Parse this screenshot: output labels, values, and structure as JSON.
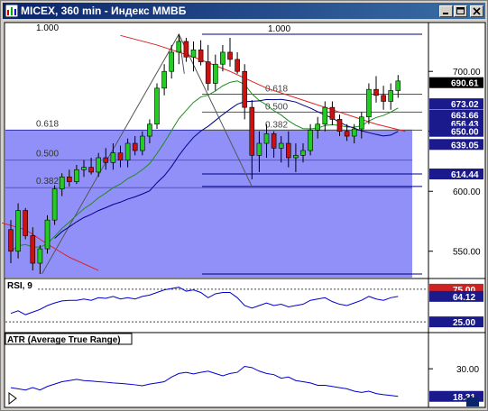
{
  "window": {
    "title": "MICEX, 360 min - Индекс ММВБ",
    "buttons": [
      "minimize",
      "maximize",
      "close"
    ]
  },
  "colors": {
    "bull": "#22cc22",
    "bear": "#cc1111",
    "ma_fast": "#1e8c1e",
    "ma_slow": "#dd2222",
    "ma_blue": "#00008b",
    "fibo_zone": "#8a8af8",
    "rsi": "#0000cc",
    "atr": "#0000cc",
    "last_price_box": "#000000",
    "level_box": "#1a1a8c"
  },
  "chart_data": [
    {
      "type": "candlestick",
      "name": "main",
      "ylim": [
        528,
        740
      ],
      "y_ticks": [
        550,
        600,
        650,
        700
      ],
      "y_tick_labels": [
        "550.00",
        "600.00",
        "650.00",
        "700.00"
      ],
      "candles": [
        [
          568,
          576,
          540,
          550
        ],
        [
          550,
          590,
          544,
          584
        ],
        [
          584,
          586,
          560,
          563
        ],
        [
          563,
          570,
          534,
          540
        ],
        [
          540,
          555,
          531,
          552
        ],
        [
          552,
          580,
          548,
          576
        ],
        [
          576,
          605,
          572,
          602
        ],
        [
          602,
          615,
          596,
          612
        ],
        [
          612,
          618,
          604,
          608
        ],
        [
          608,
          622,
          606,
          618
        ],
        [
          618,
          626,
          612,
          620
        ],
        [
          620,
          628,
          614,
          616
        ],
        [
          616,
          632,
          612,
          628
        ],
        [
          628,
          636,
          618,
          624
        ],
        [
          624,
          640,
          618,
          632
        ],
        [
          632,
          638,
          620,
          626
        ],
        [
          626,
          644,
          620,
          640
        ],
        [
          640,
          646,
          630,
          634
        ],
        [
          634,
          650,
          630,
          646
        ],
        [
          646,
          660,
          640,
          656
        ],
        [
          656,
          690,
          652,
          686
        ],
        [
          686,
          706,
          680,
          700
        ],
        [
          700,
          722,
          694,
          716
        ],
        [
          716,
          731,
          706,
          725
        ],
        [
          725,
          728,
          708,
          712
        ],
        [
          712,
          725,
          700,
          718
        ],
        [
          718,
          726,
          705,
          708
        ],
        [
          708,
          722,
          684,
          690
        ],
        [
          690,
          714,
          684,
          706
        ],
        [
          706,
          722,
          700,
          716
        ],
        [
          716,
          728,
          704,
          710
        ],
        [
          710,
          716,
          698,
          700
        ],
        [
          700,
          706,
          660,
          670
        ],
        [
          670,
          676,
          610,
          630
        ],
        [
          630,
          650,
          616,
          640
        ],
        [
          640,
          656,
          628,
          648
        ],
        [
          648,
          650,
          628,
          636
        ],
        [
          636,
          646,
          624,
          640
        ],
        [
          640,
          650,
          620,
          628
        ],
        [
          628,
          640,
          616,
          630
        ],
        [
          630,
          640,
          624,
          634
        ],
        [
          634,
          656,
          630,
          651
        ],
        [
          651,
          662,
          644,
          656
        ],
        [
          656,
          675,
          650,
          670
        ],
        [
          670,
          675,
          655,
          660
        ],
        [
          660,
          664,
          646,
          650
        ],
        [
          650,
          656,
          642,
          646
        ],
        [
          646,
          656,
          640,
          652
        ],
        [
          652,
          666,
          644,
          662
        ],
        [
          662,
          690,
          656,
          685
        ],
        [
          685,
          696,
          674,
          680
        ],
        [
          680,
          688,
          668,
          675
        ],
        [
          675,
          690,
          668,
          684
        ],
        [
          684,
          697,
          678,
          692
        ]
      ],
      "last_price": "690.61",
      "level_labels": [
        {
          "value": 690.61,
          "text": "690.61"
        },
        {
          "value": 673.02,
          "text": "673.02"
        },
        {
          "value": 663.66,
          "text": "663.66"
        },
        {
          "value": 656.43,
          "text": "656.43"
        },
        {
          "value": 650.0,
          "text": "650.00"
        },
        {
          "value": 639.05,
          "text": "639.05"
        },
        {
          "value": 614.44,
          "text": "614.44"
        }
      ],
      "fibo_left": {
        "levels": [
          {
            "ratio": "1.000",
            "value": 731
          },
          {
            "ratio": "0.618",
            "value": 651
          },
          {
            "ratio": "0.500",
            "value": 626
          },
          {
            "ratio": "0.382",
            "value": 603
          }
        ],
        "zone": [
          528,
          651
        ]
      },
      "fibo_right": {
        "levels": [
          {
            "ratio": "1.000",
            "value": 731
          },
          {
            "ratio": "0.618",
            "value": 681
          },
          {
            "ratio": "0.500",
            "value": 666
          },
          {
            "ratio": "0.382",
            "value": 651
          }
        ],
        "low_lines": [
          614.44,
          604,
          531
        ]
      }
    },
    {
      "type": "line",
      "name": "RSI, 9",
      "ylim": [
        10,
        90
      ],
      "levels": [
        75,
        25
      ],
      "level_labels": [
        "75.00",
        "25.00"
      ],
      "last_value": "64.12",
      "values": [
        38,
        42,
        36,
        40,
        44,
        50,
        54,
        57,
        58,
        58,
        60,
        58,
        62,
        61,
        64,
        60,
        62,
        60,
        64,
        66,
        70,
        74,
        76,
        78,
        72,
        74,
        70,
        62,
        68,
        70,
        70,
        62,
        50,
        46,
        50,
        54,
        50,
        52,
        48,
        50,
        52,
        58,
        60,
        62,
        56,
        52,
        50,
        54,
        58,
        64,
        60,
        58,
        62,
        64
      ]
    },
    {
      "type": "line",
      "name": "ATR (Average True Range)",
      "ylim": [
        14,
        40
      ],
      "ticks": [
        30
      ],
      "tick_labels": [
        "30.00"
      ],
      "last_value": "18.31",
      "values": [
        22,
        21.5,
        21,
        22,
        21,
        22.5,
        23.5,
        24.5,
        25,
        25.5,
        25,
        24.8,
        24.5,
        24.3,
        24,
        23.8,
        23.5,
        23.2,
        22.8,
        23.5,
        24,
        24.5,
        26.5,
        28,
        28.5,
        27.8,
        28.5,
        29,
        28,
        27,
        28,
        28.5,
        31,
        30.5,
        29,
        28,
        27.5,
        26,
        26.5,
        25,
        24.5,
        24,
        23,
        23,
        22.5,
        22,
        21.5,
        20.5,
        20,
        20.5,
        19.5,
        19,
        18.7,
        18.3
      ]
    }
  ]
}
